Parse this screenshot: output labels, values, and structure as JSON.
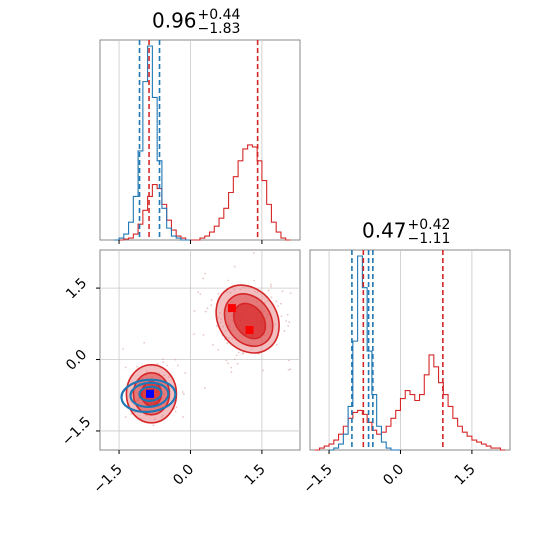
{
  "colors": {
    "red": "#d62728",
    "blue": "#1f77b4",
    "red_fill": "#e8888a",
    "marker_red": "#ff0000",
    "marker_blue": "#0000ff",
    "grid": "#c8c8c8"
  },
  "titles": {
    "x0": {
      "value": "0.96",
      "plus": "+0.44",
      "minus": "−1.83"
    },
    "x1": {
      "value": "0.47",
      "plus": "+0.42",
      "minus": "−1.11"
    }
  },
  "chart_data": {
    "type": "corner",
    "range": [
      -1.9,
      2.3
    ],
    "ticks": [
      -1.5,
      0.0,
      1.5
    ],
    "tick_labels": [
      "−1.5",
      "0.0",
      "1.5"
    ],
    "hist_x0": {
      "red": {
        "x": [
          -1.55,
          -1.45,
          -1.35,
          -1.25,
          -1.15,
          -1.05,
          -0.95,
          -0.85,
          -0.75,
          -0.65,
          -0.55,
          -0.45,
          -0.35,
          -0.25,
          -0.15,
          -0.05,
          0.05,
          0.15,
          0.25,
          0.35,
          0.45,
          0.55,
          0.65,
          0.75,
          0.85,
          0.95,
          1.05,
          1.15,
          1.25,
          1.35,
          1.45,
          1.55,
          1.65,
          1.75,
          1.85,
          1.95,
          2.05
        ],
        "y": [
          0,
          0,
          0.5,
          1,
          3,
          8,
          15,
          22,
          28,
          26,
          18,
          10,
          5,
          2,
          1,
          0,
          0,
          0,
          1,
          2,
          4,
          7,
          11,
          16,
          24,
          32,
          40,
          46,
          48,
          47,
          40,
          30,
          18,
          9,
          4,
          1,
          0
        ]
      },
      "blue": {
        "x": [
          -1.55,
          -1.45,
          -1.35,
          -1.25,
          -1.15,
          -1.05,
          -0.95,
          -0.85,
          -0.75,
          -0.65,
          -0.55,
          -0.45,
          -0.35,
          -0.25,
          -0.15,
          -0.05
        ],
        "y": [
          0,
          1,
          3,
          9,
          22,
          45,
          80,
          98,
          72,
          40,
          16,
          6,
          2,
          1,
          0,
          0
        ]
      },
      "red_lines": [
        -0.87,
        1.41
      ],
      "blue_lines": [
        -1.07,
        -0.65
      ]
    },
    "hist_x1": {
      "red": {
        "x": [
          -1.75,
          -1.65,
          -1.55,
          -1.45,
          -1.35,
          -1.25,
          -1.15,
          -1.05,
          -0.95,
          -0.85,
          -0.75,
          -0.65,
          -0.55,
          -0.45,
          -0.35,
          -0.25,
          -0.15,
          -0.05,
          0.05,
          0.15,
          0.25,
          0.35,
          0.45,
          0.55,
          0.65,
          0.75,
          0.85,
          0.95,
          1.05,
          1.15,
          1.25,
          1.35,
          1.45,
          1.55,
          1.65,
          1.75,
          1.85,
          1.95,
          2.05,
          2.15
        ],
        "y": [
          0,
          1,
          2,
          3,
          5,
          8,
          12,
          16,
          19,
          20,
          18,
          14,
          10,
          8,
          9,
          12,
          16,
          20,
          26,
          30,
          28,
          25,
          28,
          38,
          48,
          42,
          34,
          28,
          22,
          16,
          12,
          9,
          7,
          5,
          4,
          3,
          2,
          1,
          1,
          0
        ]
      },
      "blue": {
        "x": [
          -1.45,
          -1.35,
          -1.25,
          -1.15,
          -1.05,
          -0.95,
          -0.85,
          -0.75,
          -0.65,
          -0.55,
          -0.45,
          -0.35,
          -0.25,
          -0.15,
          -0.05
        ],
        "y": [
          0,
          1,
          3,
          8,
          22,
          55,
          98,
          82,
          50,
          28,
          12,
          4,
          1,
          0,
          0
        ]
      },
      "red_lines": [
        -0.78,
        0.89
      ],
      "blue_lines": [
        -1.02,
        -0.67,
        -0.58
      ]
    },
    "scatter_2d": {
      "blobs": [
        {
          "label": "lower-left",
          "center": [
            -0.82,
            -0.72
          ],
          "sx": 0.32,
          "sy": 0.36
        },
        {
          "label": "upper-right",
          "center": [
            1.2,
            0.85
          ],
          "sx": 0.55,
          "sy": 0.5
        }
      ],
      "markers_red": [
        [
          0.87,
          1.08
        ],
        [
          1.24,
          0.62
        ],
        [
          -0.85,
          -0.72
        ]
      ],
      "markers_blue": [
        [
          -0.85,
          -0.72
        ]
      ]
    }
  }
}
